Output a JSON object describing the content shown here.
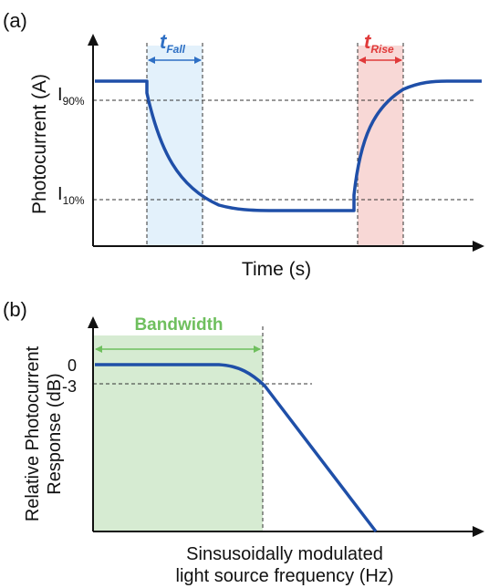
{
  "panel_a": {
    "label": "(a)",
    "ylabel": "Photocurrent (A)",
    "xlabel": "Time (s)",
    "level_high": {
      "main": "I",
      "sub": "90%"
    },
    "level_low": {
      "main": "I",
      "sub": "10%"
    },
    "t_fall": {
      "main": "t",
      "sub": "Fall"
    },
    "t_rise": {
      "main": "t",
      "sub": "Rise"
    }
  },
  "panel_b": {
    "label": "(b)",
    "ylabel_line1": "Relative Photocurrent",
    "ylabel_line2": "Response (dB)",
    "xlabel_line1": "Sinsusoidally modulated",
    "xlabel_line2": "light source frequency (Hz)",
    "bandwidth_label": "Bandwidth",
    "tick_0": "0",
    "tick_minus3": "-3"
  },
  "colors": {
    "curve": "#1f4fa8",
    "fall_region": "#e3f1fb",
    "fall_text": "#2e6fc4",
    "rise_region": "#f8d8d6",
    "rise_text": "#e03a3a",
    "bandwidth_region": "#d6ebd2",
    "bandwidth_text": "#6fbf5e"
  }
}
